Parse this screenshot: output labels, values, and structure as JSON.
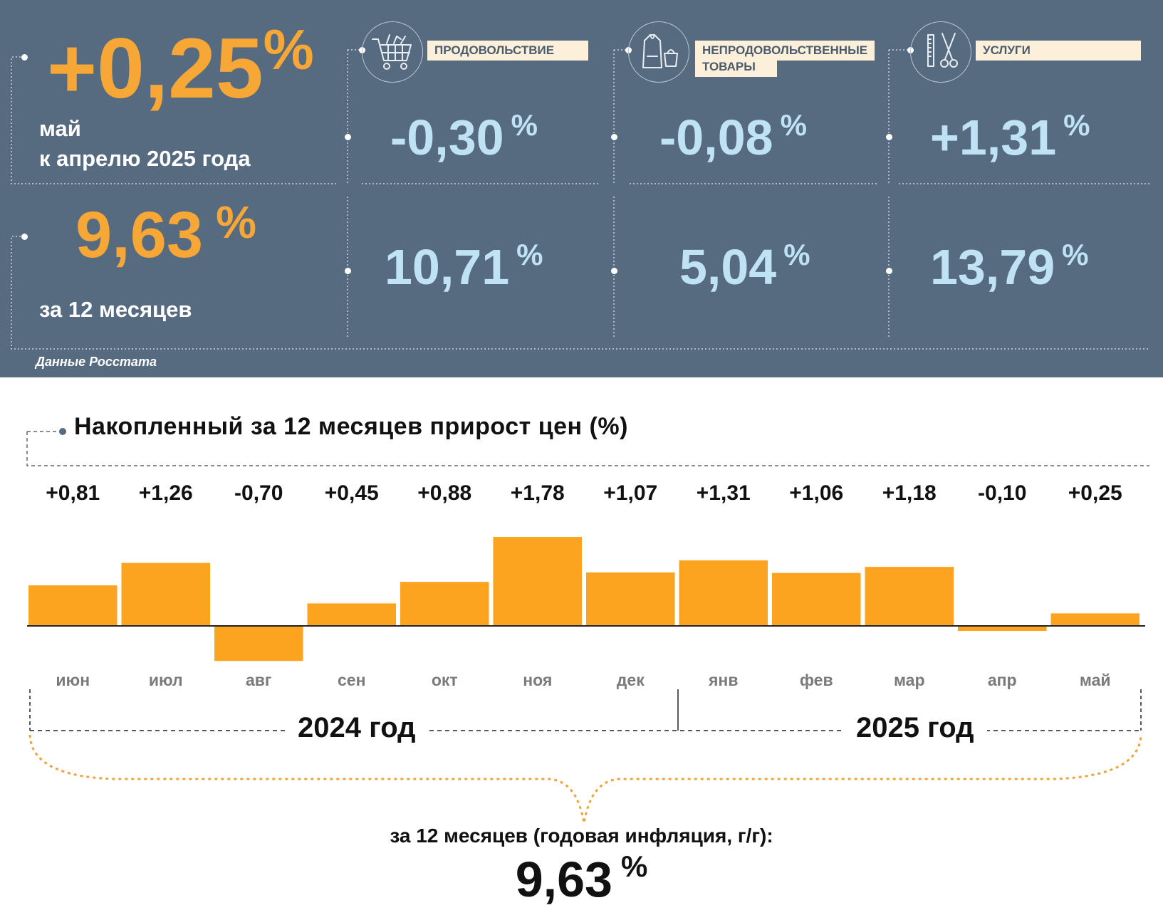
{
  "headline": {
    "monthly_value": "+0,25",
    "monthly_pct": "%",
    "monthly_caption_line1": "май",
    "monthly_caption_line2": "к апрелю 2025 года",
    "annual_value": "9,63",
    "annual_pct": "%",
    "annual_caption": "за 12 месяцев"
  },
  "categories": [
    {
      "icon": "shopping-cart-icon",
      "label": "ПРОДОВОЛЬСТВИЕ",
      "monthly": "-0,30",
      "annual": "10,71",
      "pct": "%"
    },
    {
      "icon": "clothing-icon",
      "label_line1": "НЕПРОДОВОЛЬСТВЕННЫЕ",
      "label_line2": "ТОВАРЫ",
      "monthly": "-0,08",
      "annual": "5,04",
      "pct": "%"
    },
    {
      "icon": "scissors-comb-icon",
      "label": "УСЛУГИ",
      "monthly": "+1,31",
      "annual": "13,79",
      "pct": "%"
    }
  ],
  "source": "Данные Росстата",
  "colors": {
    "panel": "#566a80",
    "accent": "#f7a735",
    "value_blue": "#bfe2f4",
    "bar": "#fca41f"
  },
  "chart_data": {
    "type": "bar",
    "title": "Накопленный за 12 месяцев прирост цен (%)",
    "categories": [
      "июн",
      "июл",
      "авг",
      "сен",
      "окт",
      "ноя",
      "дек",
      "янв",
      "фев",
      "мар",
      "апр",
      "май"
    ],
    "values": [
      0.81,
      1.26,
      -0.7,
      0.45,
      0.88,
      1.78,
      1.07,
      1.31,
      1.06,
      1.18,
      -0.1,
      0.25
    ],
    "value_labels": [
      "+0,81",
      "+1,26",
      "-0,70",
      "+0,45",
      "+0,88",
      "+1,78",
      "+1,07",
      "+1,31",
      "+1,06",
      "+1,18",
      "-0,10",
      "+0,25"
    ],
    "year_groups": [
      {
        "label": "2024 год",
        "months": [
          "июн",
          "июл",
          "авг",
          "сен",
          "окт",
          "ноя",
          "дек"
        ]
      },
      {
        "label": "2025 год",
        "months": [
          "янв",
          "фев",
          "мар",
          "апр",
          "май"
        ]
      }
    ],
    "summary_caption": "за 12 месяцев (годовая инфляция, г/г):",
    "summary_value": "9,63",
    "summary_pct": "%"
  }
}
